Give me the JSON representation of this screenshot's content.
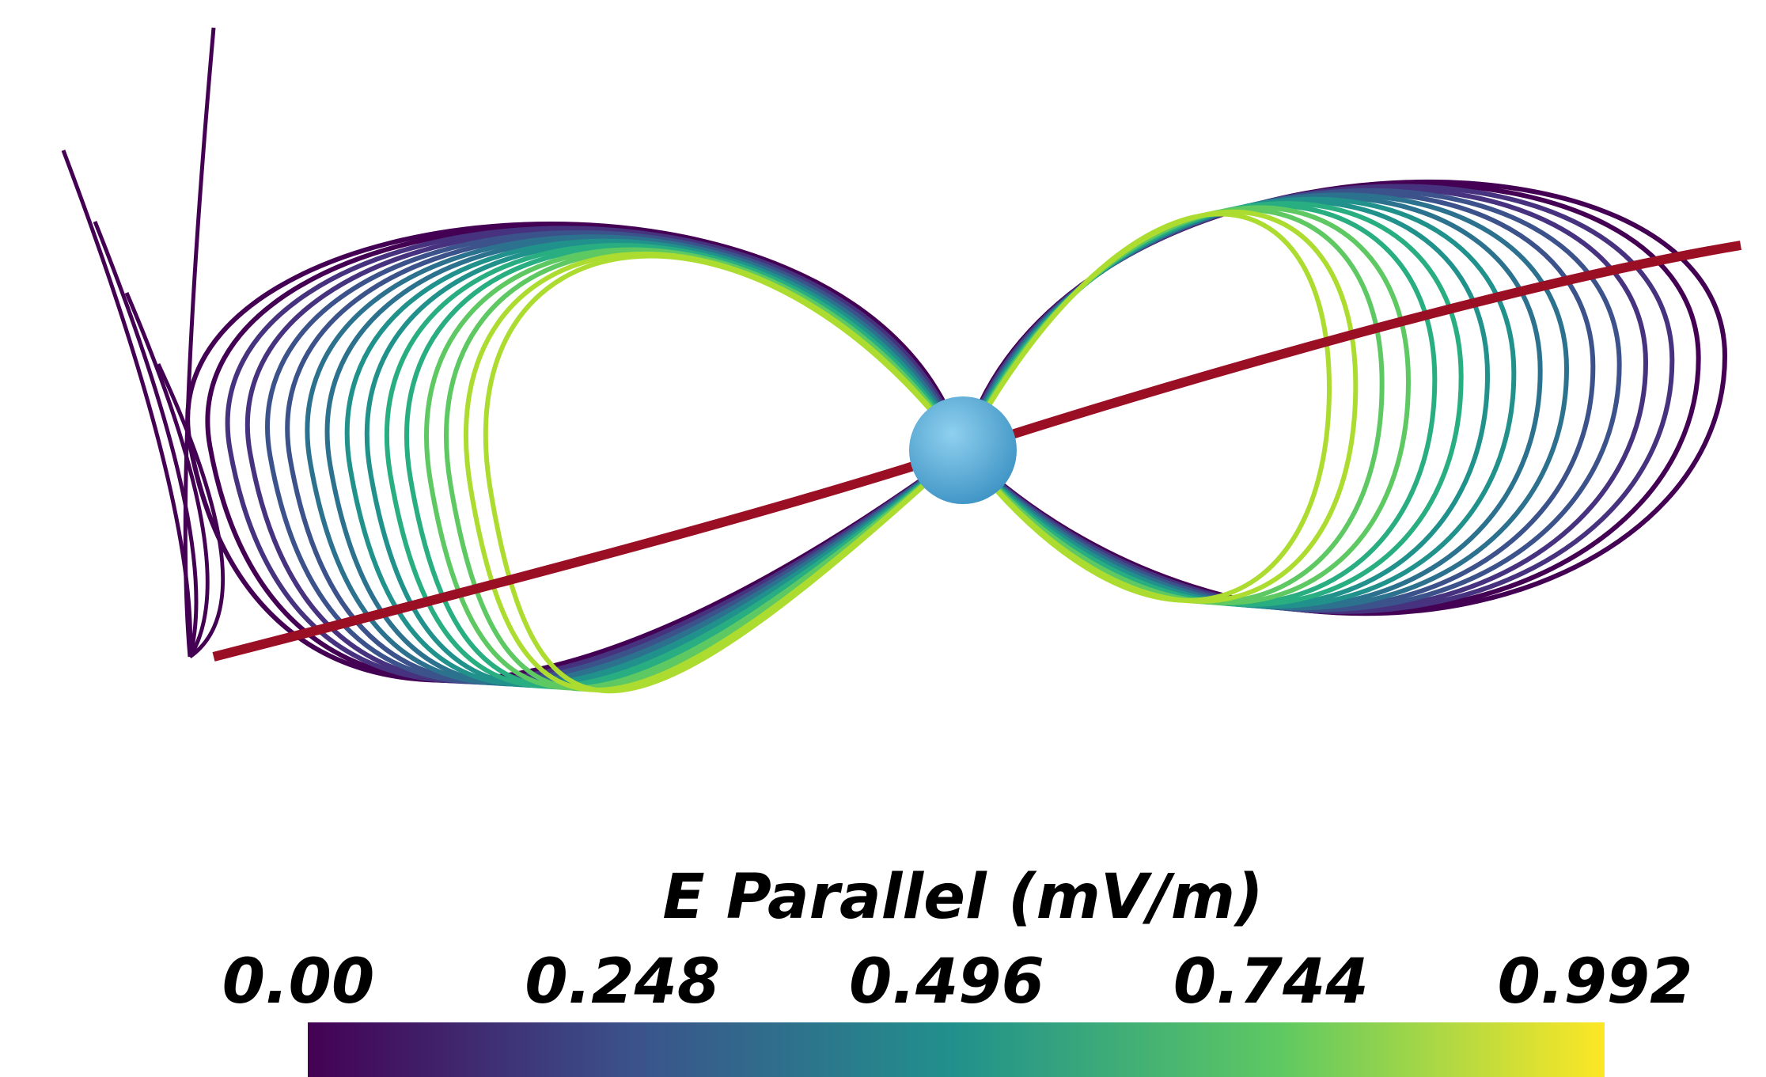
{
  "colorbar": {
    "title": "E Parallel (mV/m)",
    "range": [
      0,
      0.992
    ],
    "ticks": [
      {
        "value": 0,
        "label": "0.00"
      },
      0.248,
      0.496,
      0.744,
      0.992
    ]
  }
}
